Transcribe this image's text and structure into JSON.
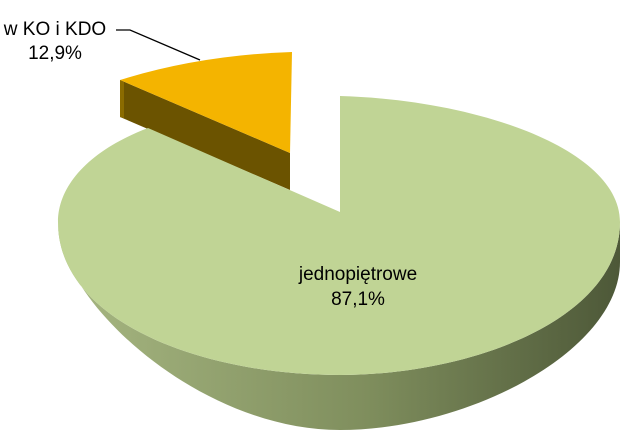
{
  "chart_data": {
    "type": "pie",
    "style": "3d-exploded",
    "slices": [
      {
        "label": "jednopiętrowe",
        "value": 87.1,
        "value_text": "87,1%",
        "color": "#c0d495"
      },
      {
        "label": "w KO i KDO",
        "value": 12.9,
        "value_text": "12,9%",
        "color": "#f4b400"
      }
    ],
    "title": "",
    "legend": "none"
  }
}
